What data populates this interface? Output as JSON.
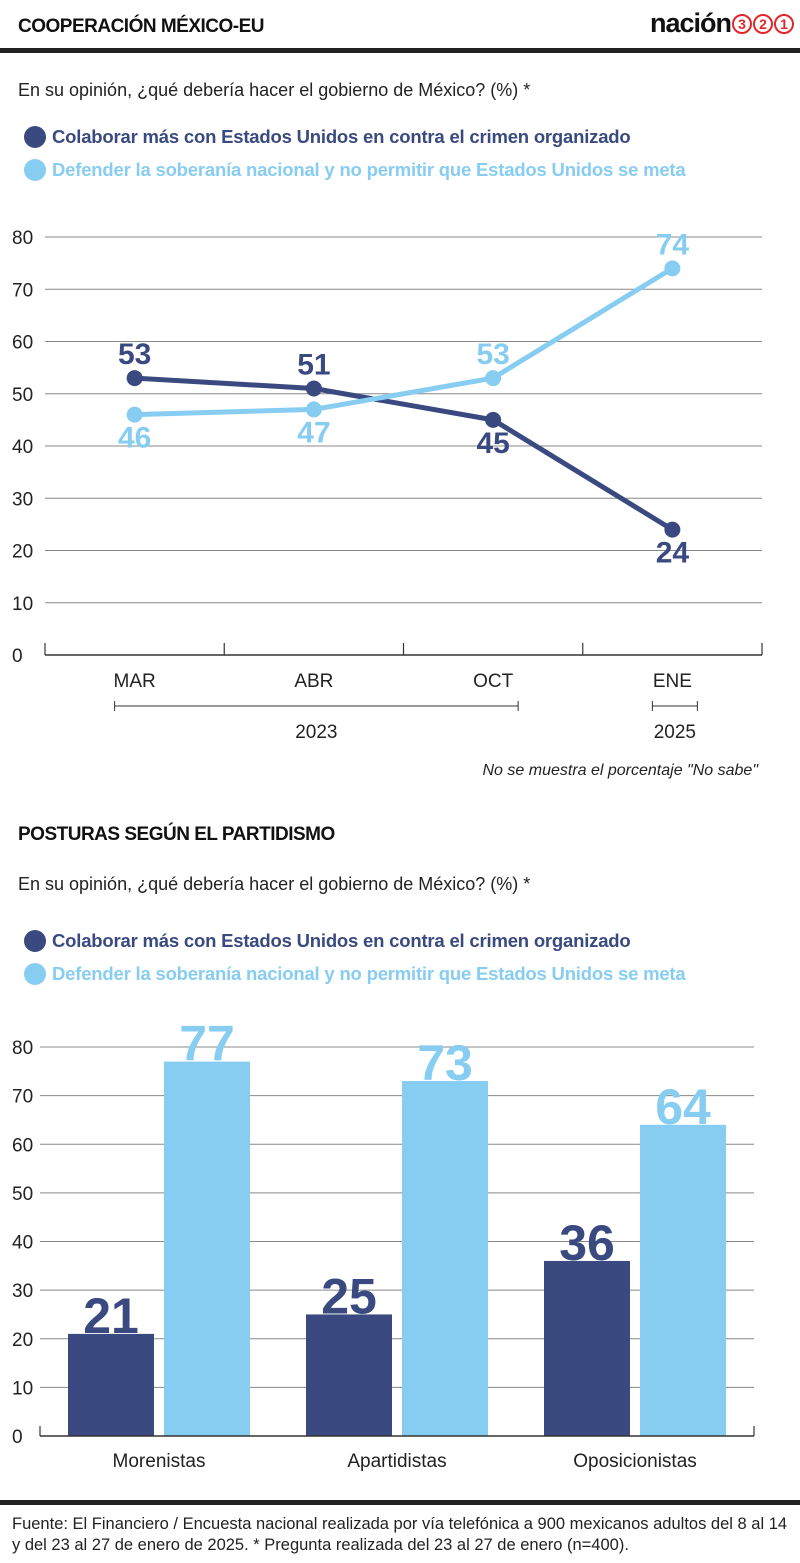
{
  "header": {
    "title": "COOPERACIÓN MÉXICO-EU",
    "brand_word": "nación",
    "brand_digits": [
      "3",
      "2",
      "1"
    ]
  },
  "colors": {
    "dark": "#3a4a80",
    "light": "#87cdf2",
    "grid": "#888888",
    "brand_red": "#e3262a"
  },
  "section1": {
    "question": "En su opinión, ¿qué debería hacer el gobierno de México? (%) *",
    "legend": [
      "Colaborar más con Estados Unidos en contra el crimen organizado",
      "Defender la soberanía nacional  y no  permitir que Estados Unidos se meta"
    ],
    "note": "No se muestra el porcentaje \"No sabe\""
  },
  "section2": {
    "title": "POSTURAS SEGÚN EL PARTIDISMO",
    "question": "En su opinión, ¿qué debería hacer el gobierno de México? (%) *",
    "legend": [
      "Colaborar más con Estados Unidos en contra el crimen organizado",
      "Defender la soberanía nacional  y no  permitir que Estados Unidos se meta"
    ]
  },
  "chart_data": [
    {
      "type": "line",
      "categories": [
        "MAR",
        "ABR",
        "OCT",
        "ENE"
      ],
      "year_groups": [
        {
          "label": "2023",
          "categories": [
            "MAR",
            "ABR",
            "OCT"
          ]
        },
        {
          "label": "2025",
          "categories": [
            "ENE"
          ]
        }
      ],
      "series": [
        {
          "name": "Colaborar más con Estados Unidos en contra el crimen organizado",
          "values": [
            53,
            51,
            45,
            24
          ]
        },
        {
          "name": "Defender la soberanía nacional  y no  permitir que Estados Unidos se meta",
          "values": [
            46,
            47,
            53,
            74
          ]
        }
      ],
      "ylim": [
        0,
        80
      ],
      "yticks": [
        0,
        10,
        20,
        30,
        40,
        50,
        60,
        70,
        80
      ],
      "grid": true,
      "legend": "top-left"
    },
    {
      "type": "bar",
      "categories": [
        "Morenistas",
        "Apartidistas",
        "Oposicionistas"
      ],
      "series": [
        {
          "name": "Colaborar más con Estados Unidos en contra el crimen organizado",
          "values": [
            21,
            25,
            36
          ]
        },
        {
          "name": "Defender la soberanía nacional  y no  permitir que Estados Unidos se meta",
          "values": [
            77,
            73,
            64
          ]
        }
      ],
      "ylim": [
        0,
        80
      ],
      "yticks": [
        0,
        10,
        20,
        30,
        40,
        50,
        60,
        70,
        80
      ],
      "grid": true,
      "legend": "top-left"
    }
  ],
  "source": "Fuente: El Financiero / Encuesta nacional realizada por vía telefónica a 900 mexicanos adultos del 8 al 14 y del 23 al 27 de enero de 2025. * Pregunta realizada del 23 al 27 de enero (n=400)."
}
